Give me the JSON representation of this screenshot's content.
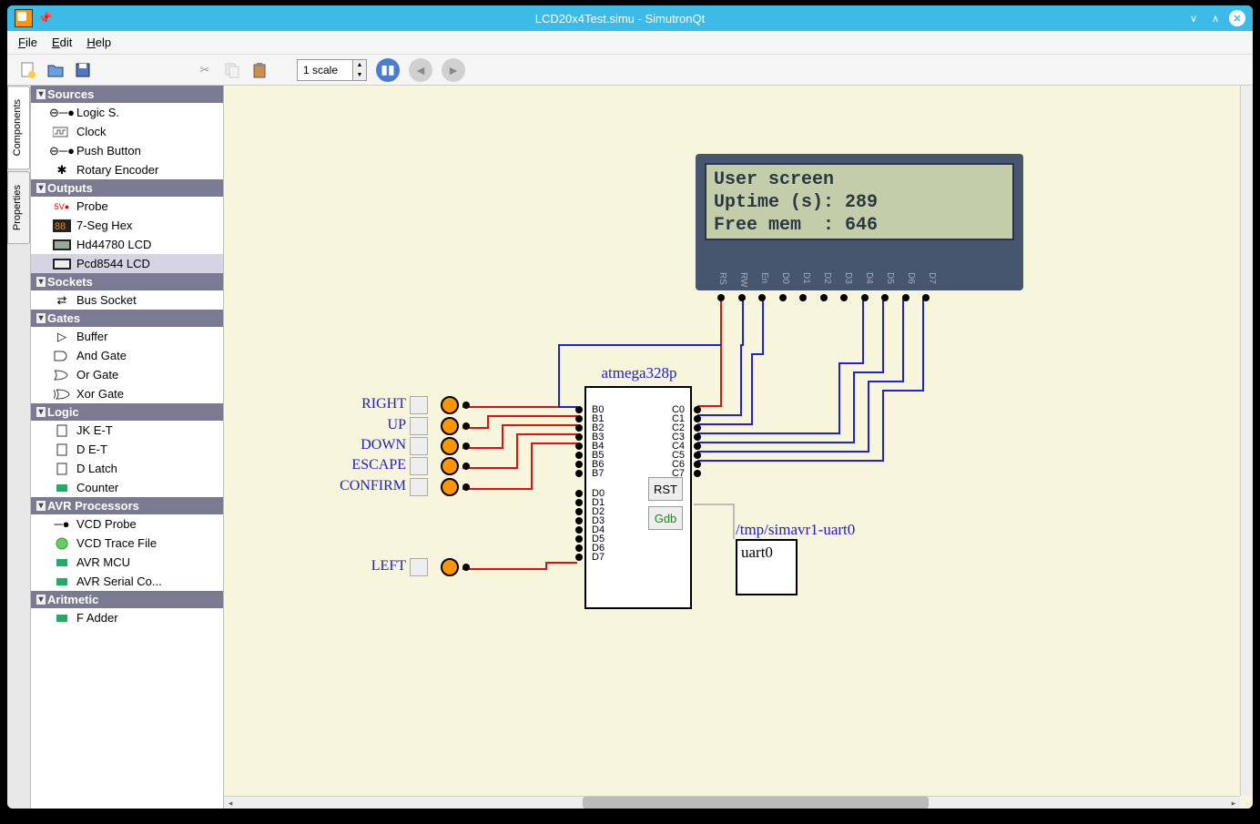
{
  "window": {
    "title": "LCD20x4Test.simu - SimutronQt"
  },
  "menu": {
    "file": "File",
    "edit": "Edit",
    "help": "Help"
  },
  "toolbar": {
    "scale_value": "1 scale"
  },
  "side_tabs": {
    "components": "Components",
    "properties": "Properties"
  },
  "tree": {
    "sources": {
      "header": "Sources",
      "items": [
        "Logic S.",
        "Clock",
        "Push Button",
        "Rotary Encoder"
      ]
    },
    "outputs": {
      "header": "Outputs",
      "items": [
        "Probe",
        "7-Seg Hex",
        "Hd44780 LCD",
        "Pcd8544 LCD"
      ]
    },
    "sockets": {
      "header": "Sockets",
      "items": [
        "Bus Socket"
      ]
    },
    "gates": {
      "header": "Gates",
      "items": [
        "Buffer",
        "And Gate",
        "Or Gate",
        "Xor Gate"
      ]
    },
    "logic": {
      "header": "Logic",
      "items": [
        "JK E-T",
        "D E-T",
        "D Latch",
        "Counter"
      ]
    },
    "avr": {
      "header": "AVR Processors",
      "items": [
        "VCD Probe",
        "VCD Trace File",
        "AVR MCU",
        "AVR Serial Co..."
      ]
    },
    "arith": {
      "header": "Aritmetic",
      "items": [
        "F Adder"
      ]
    }
  },
  "lcd": {
    "line1": "User screen",
    "line2": "Uptime (s): 289",
    "line3": "Free mem  : 646",
    "pins": [
      "RS",
      "RW",
      "En",
      "D0",
      "D1",
      "D2",
      "D3",
      "D4",
      "D5",
      "D6",
      "D7"
    ],
    "bg": "#46566e",
    "screen_bg": "#c3cdaa",
    "text_color": "#2a3840"
  },
  "chip": {
    "name": "atmega328p",
    "left_pins_b": [
      "B0",
      "B1",
      "B2",
      "B3",
      "B4",
      "B5",
      "B6",
      "B7"
    ],
    "left_pins_d": [
      "D0",
      "D1",
      "D2",
      "D3",
      "D4",
      "D5",
      "D6",
      "D7"
    ],
    "right_pins": [
      "C0",
      "C1",
      "C2",
      "C3",
      "C4",
      "C5",
      "C6",
      "C7"
    ],
    "rst": "RST",
    "gdb": "Gdb"
  },
  "buttons": {
    "labels": [
      "RIGHT",
      "UP",
      "DOWN",
      "ESCAPE",
      "CONFIRM",
      "LEFT"
    ]
  },
  "uart": {
    "path": "/tmp/simavr1-uart0",
    "label": "uart0"
  },
  "colors": {
    "canvas_bg": "#f7f5dc",
    "wire_red": "#e01010",
    "wire_blue": "#2020d8",
    "chip_label": "#2020c0",
    "titlebar": "#3cbae8",
    "tree_header": "#7a7a92",
    "push_orange": "#ff9500"
  }
}
